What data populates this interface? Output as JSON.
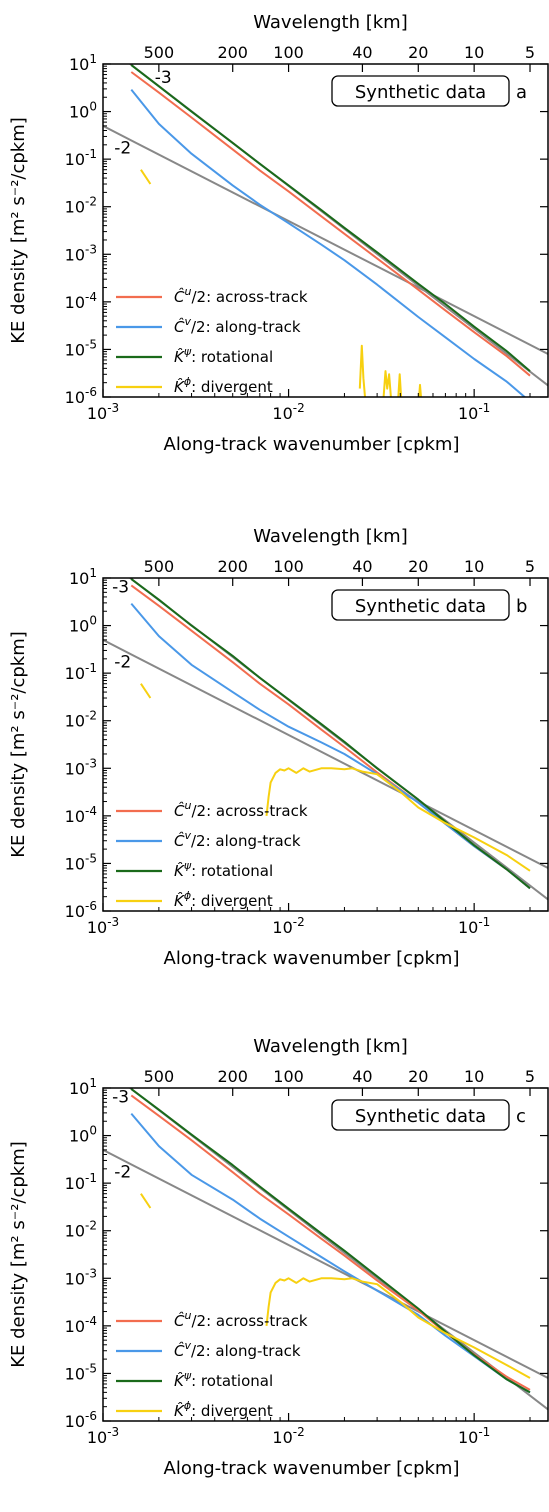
{
  "chart_data": [
    {
      "type": "line",
      "panel_label": "a",
      "title": "",
      "annotation_box": "Synthetic data",
      "xlabel": "Along-track wavenumber  [cpkm]",
      "ylabel": "KE density  [m² s⁻²/cpkm]",
      "top_xlabel": "Wavelength [km]",
      "xscale": "log",
      "yscale": "log",
      "xlim": [
        0.001,
        0.25
      ],
      "ylim": [
        1e-06,
        10
      ],
      "xticks": [
        {
          "v": 0.001,
          "b": "10",
          "e": "-3"
        },
        {
          "v": 0.01,
          "b": "10",
          "e": "-2"
        },
        {
          "v": 0.1,
          "b": "10",
          "e": "-1"
        }
      ],
      "yticks": [
        {
          "v": 1e-06,
          "b": "10",
          "e": "-6"
        },
        {
          "v": 1e-05,
          "b": "10",
          "e": "-5"
        },
        {
          "v": 0.0001,
          "b": "10",
          "e": "-4"
        },
        {
          "v": 0.001,
          "b": "10",
          "e": "-3"
        },
        {
          "v": 0.01,
          "b": "10",
          "e": "-2"
        },
        {
          "v": 0.1,
          "b": "10",
          "e": "-1"
        },
        {
          "v": 1,
          "b": "10",
          "e": "0"
        },
        {
          "v": 10,
          "b": "10",
          "e": "1"
        }
      ],
      "top_ticks": [
        {
          "km": 500,
          "label": "500"
        },
        {
          "km": 200,
          "label": "200"
        },
        {
          "km": 100,
          "label": "100"
        },
        {
          "km": 40,
          "label": "40"
        },
        {
          "km": 20,
          "label": "20"
        },
        {
          "km": 10,
          "label": "10"
        },
        {
          "km": 5,
          "label": "5"
        }
      ],
      "reference_lines": [
        {
          "name": "-3",
          "x": [
            0.0014,
            0.25
          ],
          "y": [
            10,
            1.75e-06
          ]
        },
        {
          "name": "-2",
          "x": [
            0.001,
            0.25
          ],
          "y": [
            0.5,
            8e-06
          ]
        }
      ],
      "slope_labels": [
        {
          "text": "-3",
          "x": 0.0019,
          "y": 4
        },
        {
          "text": "-2",
          "x": 0.00115,
          "y": 0.13
        }
      ],
      "series": [
        {
          "label": "across-track",
          "color": "#f26d4f",
          "x": [
            0.00142,
            0.002,
            0.003,
            0.005,
            0.007,
            0.01,
            0.015,
            0.02,
            0.03,
            0.05,
            0.07,
            0.1,
            0.15,
            0.2
          ],
          "y": [
            6.8,
            2.5,
            0.75,
            0.16,
            0.058,
            0.021,
            0.0063,
            0.0027,
            0.00082,
            0.00018,
            6.6e-05,
            2.3e-05,
            7.2e-06,
            2.8e-06
          ]
        },
        {
          "label": "along-track",
          "color": "#4a98e8",
          "x": [
            0.00142,
            0.002,
            0.003,
            0.005,
            0.007,
            0.01,
            0.015,
            0.02,
            0.03,
            0.05,
            0.07,
            0.1,
            0.15,
            0.2
          ],
          "y": [
            2.9,
            0.55,
            0.13,
            0.028,
            0.011,
            0.0045,
            0.0016,
            0.00075,
            0.00023,
            4.8e-05,
            1.8e-05,
            6.3e-06,
            2.1e-06,
            8e-07
          ]
        },
        {
          "label": "rotational",
          "color": "#1a6a1a",
          "x": [
            0.00142,
            0.002,
            0.003,
            0.005,
            0.007,
            0.01,
            0.015,
            0.02,
            0.03,
            0.05,
            0.07,
            0.1,
            0.15,
            0.2
          ],
          "y": [
            9.5,
            3.4,
            1.0,
            0.22,
            0.08,
            0.028,
            0.0085,
            0.0036,
            0.0011,
            0.00024,
            9e-05,
            3e-05,
            9.2e-06,
            3.5e-06
          ]
        },
        {
          "label": "divergent",
          "color": "#f7d010",
          "segments": [
            {
              "x": [
                0.0016,
                0.0018
              ],
              "y": [
                0.06,
                0.03
              ]
            },
            {
              "x": [
                0.0242,
                0.0248,
                0.0253,
                0.0258
              ],
              "y": [
                1.5e-06,
                1.2e-05,
                2.5e-06,
                1e-06
              ]
            },
            {
              "x": [
                0.0325,
                0.0333,
                0.034,
                0.0348,
                0.0356
              ],
              "y": [
                1e-06,
                3.5e-06,
                1.5e-06,
                3e-06,
                1e-06
              ]
            },
            {
              "x": [
                0.039,
                0.0397,
                0.0404
              ],
              "y": [
                1e-06,
                3e-06,
                1e-06
              ]
            },
            {
              "x": [
                0.0505,
                0.0511,
                0.0517
              ],
              "y": [
                1e-06,
                1.8e-06,
                1e-06
              ]
            }
          ]
        }
      ]
    },
    {
      "type": "line",
      "panel_label": "b",
      "title": "",
      "annotation_box": "Synthetic data",
      "xlabel": "Along-track wavenumber  [cpkm]",
      "ylabel": "KE density  [m² s⁻²/cpkm]",
      "top_xlabel": "Wavelength [km]",
      "xscale": "log",
      "yscale": "log",
      "xlim": [
        0.001,
        0.25
      ],
      "ylim": [
        1e-06,
        10
      ],
      "xticks": [
        {
          "v": 0.001,
          "b": "10",
          "e": "-3"
        },
        {
          "v": 0.01,
          "b": "10",
          "e": "-2"
        },
        {
          "v": 0.1,
          "b": "10",
          "e": "-1"
        }
      ],
      "yticks": [
        {
          "v": 1e-06,
          "b": "10",
          "e": "-6"
        },
        {
          "v": 1e-05,
          "b": "10",
          "e": "-5"
        },
        {
          "v": 0.0001,
          "b": "10",
          "e": "-4"
        },
        {
          "v": 0.001,
          "b": "10",
          "e": "-3"
        },
        {
          "v": 0.01,
          "b": "10",
          "e": "-2"
        },
        {
          "v": 0.1,
          "b": "10",
          "e": "-1"
        },
        {
          "v": 1,
          "b": "10",
          "e": "0"
        },
        {
          "v": 10,
          "b": "10",
          "e": "1"
        }
      ],
      "top_ticks": [
        {
          "km": 500,
          "label": "500"
        },
        {
          "km": 200,
          "label": "200"
        },
        {
          "km": 100,
          "label": "100"
        },
        {
          "km": 40,
          "label": "40"
        },
        {
          "km": 20,
          "label": "20"
        },
        {
          "km": 10,
          "label": "10"
        },
        {
          "km": 5,
          "label": "5"
        }
      ],
      "reference_lines": [
        {
          "name": "-3",
          "x": [
            0.0014,
            0.25
          ],
          "y": [
            10,
            1.75e-06
          ]
        },
        {
          "name": "-2",
          "x": [
            0.001,
            0.25
          ],
          "y": [
            0.5,
            8e-06
          ]
        }
      ],
      "slope_labels": [
        {
          "text": "-3",
          "x": 0.00112,
          "y": 5
        },
        {
          "text": "-2",
          "x": 0.00115,
          "y": 0.13
        }
      ],
      "series": [
        {
          "label": "across-track",
          "color": "#f26d4f",
          "x": [
            0.00142,
            0.002,
            0.003,
            0.005,
            0.007,
            0.01,
            0.015,
            0.02,
            0.03,
            0.05,
            0.07,
            0.1,
            0.15,
            0.2
          ],
          "y": [
            7,
            2.6,
            0.78,
            0.17,
            0.06,
            0.022,
            0.0065,
            0.0028,
            0.00082,
            0.00019,
            6.8e-05,
            2.3e-05,
            7.5e-06,
            3e-06
          ]
        },
        {
          "label": "along-track",
          "color": "#4a98e8",
          "x": [
            0.00142,
            0.002,
            0.003,
            0.005,
            0.007,
            0.01,
            0.015,
            0.02,
            0.03,
            0.05,
            0.07,
            0.1,
            0.15,
            0.2
          ],
          "y": [
            2.9,
            0.6,
            0.15,
            0.04,
            0.017,
            0.0075,
            0.0035,
            0.002,
            0.00075,
            0.00019,
            6.8e-05,
            2.3e-05,
            7.5e-06,
            3e-06
          ]
        },
        {
          "label": "rotational",
          "color": "#1a6a1a",
          "x": [
            0.00142,
            0.002,
            0.003,
            0.005,
            0.007,
            0.01,
            0.015,
            0.02,
            0.03,
            0.05,
            0.07,
            0.1,
            0.15,
            0.2
          ],
          "y": [
            9.5,
            3.5,
            1.0,
            0.23,
            0.08,
            0.028,
            0.0085,
            0.0036,
            0.001,
            0.00022,
            7.5e-05,
            2.4e-05,
            7.5e-06,
            3e-06
          ]
        },
        {
          "label": "divergent",
          "color": "#f7d010",
          "segments": [
            {
              "x": [
                0.0016,
                0.0018
              ],
              "y": [
                0.06,
                0.03
              ]
            },
            {
              "x": [
                0.0076,
                0.0078,
                0.008,
                0.0085,
                0.009,
                0.0095,
                0.01,
                0.011,
                0.012,
                0.013,
                0.015,
                0.017,
                0.02,
                0.022,
                0.025,
                0.03,
                0.04,
                0.05,
                0.07,
                0.1,
                0.15,
                0.2
              ],
              "y": [
                0.0001,
                0.00025,
                0.0005,
                0.0008,
                0.00095,
                0.0009,
                0.001,
                0.0008,
                0.001,
                0.00085,
                0.001,
                0.001,
                0.00095,
                0.001,
                0.00085,
                0.00075,
                0.00032,
                0.00015,
                7e-05,
                3.5e-05,
                1.5e-05,
                7e-06
              ]
            }
          ]
        }
      ]
    },
    {
      "type": "line",
      "panel_label": "c",
      "title": "",
      "annotation_box": "Synthetic data",
      "xlabel": "Along-track wavenumber  [cpkm]",
      "ylabel": "KE density  [m² s⁻²/cpkm]",
      "top_xlabel": "Wavelength [km]",
      "xscale": "log",
      "yscale": "log",
      "xlim": [
        0.001,
        0.25
      ],
      "ylim": [
        1e-06,
        10
      ],
      "xticks": [
        {
          "v": 0.001,
          "b": "10",
          "e": "-3"
        },
        {
          "v": 0.01,
          "b": "10",
          "e": "-2"
        },
        {
          "v": 0.1,
          "b": "10",
          "e": "-1"
        }
      ],
      "yticks": [
        {
          "v": 1e-06,
          "b": "10",
          "e": "-6"
        },
        {
          "v": 1e-05,
          "b": "10",
          "e": "-5"
        },
        {
          "v": 0.0001,
          "b": "10",
          "e": "-4"
        },
        {
          "v": 0.001,
          "b": "10",
          "e": "-3"
        },
        {
          "v": 0.01,
          "b": "10",
          "e": "-2"
        },
        {
          "v": 0.1,
          "b": "10",
          "e": "-1"
        },
        {
          "v": 1,
          "b": "10",
          "e": "0"
        },
        {
          "v": 10,
          "b": "10",
          "e": "1"
        }
      ],
      "top_ticks": [
        {
          "km": 500,
          "label": "500"
        },
        {
          "km": 200,
          "label": "200"
        },
        {
          "km": 100,
          "label": "100"
        },
        {
          "km": 40,
          "label": "40"
        },
        {
          "km": 20,
          "label": "20"
        },
        {
          "km": 10,
          "label": "10"
        },
        {
          "km": 5,
          "label": "5"
        }
      ],
      "reference_lines": [
        {
          "name": "-3",
          "x": [
            0.0014,
            0.25
          ],
          "y": [
            10,
            1.75e-06
          ]
        },
        {
          "name": "-2",
          "x": [
            0.001,
            0.25
          ],
          "y": [
            0.5,
            8e-06
          ]
        }
      ],
      "slope_labels": [
        {
          "text": "-3",
          "x": 0.00112,
          "y": 5
        },
        {
          "text": "-2",
          "x": 0.00115,
          "y": 0.13
        }
      ],
      "series": [
        {
          "label": "across-track",
          "color": "#f26d4f",
          "x": [
            0.00142,
            0.002,
            0.003,
            0.005,
            0.007,
            0.01,
            0.015,
            0.02,
            0.03,
            0.05,
            0.07,
            0.1,
            0.15,
            0.2
          ],
          "y": [
            7,
            2.6,
            0.8,
            0.17,
            0.06,
            0.022,
            0.0068,
            0.003,
            0.0009,
            0.00021,
            7.2e-05,
            2.5e-05,
            8.5e-06,
            4.5e-06
          ]
        },
        {
          "label": "along-track",
          "color": "#4a98e8",
          "x": [
            0.00142,
            0.002,
            0.003,
            0.005,
            0.007,
            0.01,
            0.015,
            0.02,
            0.03,
            0.05,
            0.07,
            0.1,
            0.15,
            0.2
          ],
          "y": [
            2.9,
            0.6,
            0.15,
            0.045,
            0.018,
            0.0075,
            0.0028,
            0.0014,
            0.00055,
            0.00017,
            6.2e-05,
            2.3e-05,
            7.5e-06,
            4e-06
          ]
        },
        {
          "label": "rotational",
          "color": "#1a6a1a",
          "x": [
            0.00142,
            0.002,
            0.003,
            0.005,
            0.007,
            0.01,
            0.015,
            0.02,
            0.03,
            0.05,
            0.07,
            0.1,
            0.15,
            0.2
          ],
          "y": [
            9.5,
            3.5,
            1.05,
            0.24,
            0.085,
            0.029,
            0.0088,
            0.0038,
            0.0011,
            0.00023,
            7.5e-05,
            2.4e-05,
            7.5e-06,
            4e-06
          ]
        },
        {
          "label": "divergent",
          "color": "#f7d010",
          "segments": [
            {
              "x": [
                0.0016,
                0.0018
              ],
              "y": [
                0.06,
                0.03
              ]
            },
            {
              "x": [
                0.0076,
                0.0078,
                0.008,
                0.0085,
                0.009,
                0.0095,
                0.01,
                0.011,
                0.012,
                0.013,
                0.015,
                0.017,
                0.02,
                0.022,
                0.025,
                0.03,
                0.04,
                0.05,
                0.07,
                0.1,
                0.15,
                0.2
              ],
              "y": [
                0.0001,
                0.00025,
                0.0005,
                0.0008,
                0.00095,
                0.0009,
                0.001,
                0.0008,
                0.001,
                0.00085,
                0.001,
                0.001,
                0.00095,
                0.001,
                0.00085,
                0.00075,
                0.00032,
                0.00015,
                7e-05,
                3.5e-05,
                1.5e-05,
                8e-06
              ]
            }
          ]
        }
      ]
    }
  ]
}
